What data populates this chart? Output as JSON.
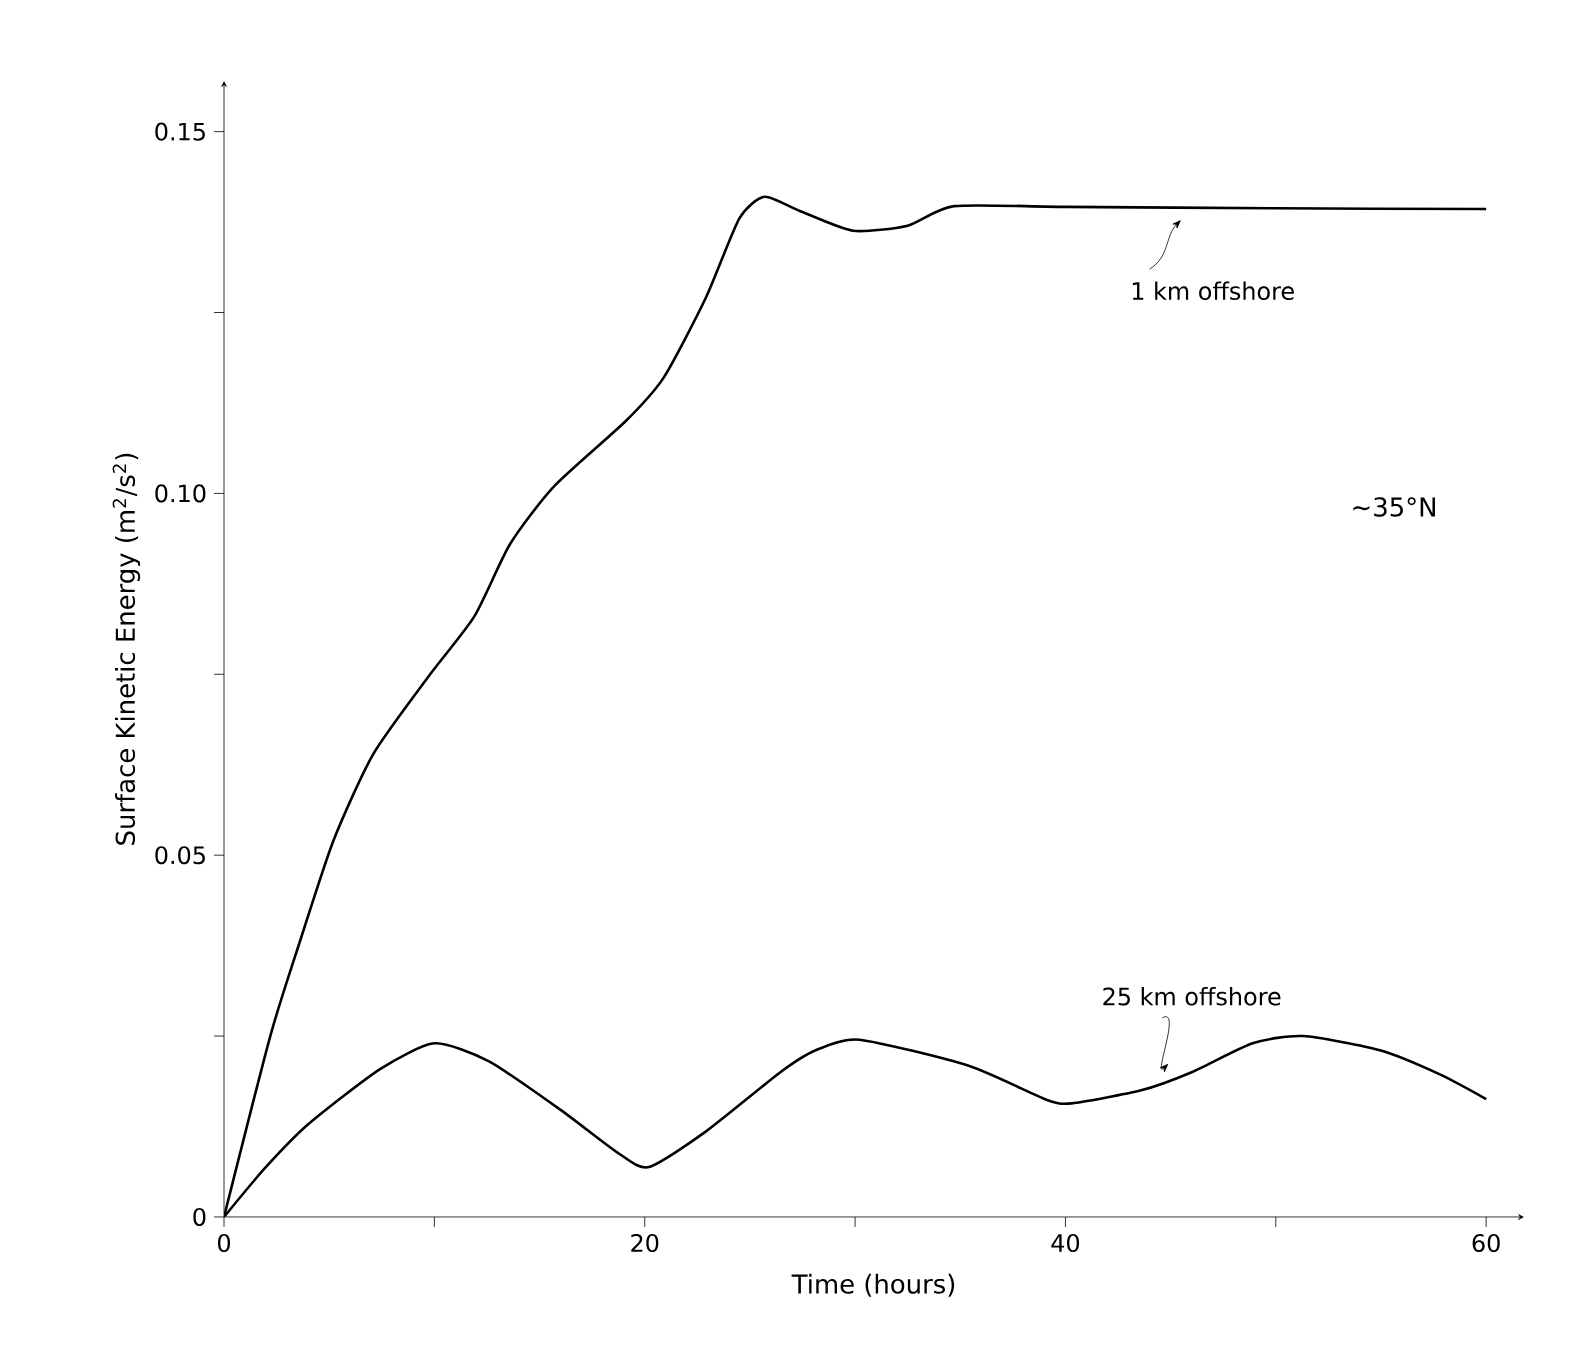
{
  "chart_data": {
    "type": "line",
    "xlabel": "Time (hours)",
    "ylabel": "Surface Kinetic Energy (m$^{2}$/s$^{2}$)",
    "annotations": [
      "~35°N"
    ],
    "xlim": [
      0,
      61.8
    ],
    "ylim": [
      0,
      0.157
    ],
    "xticks": [
      0,
      {
        "value": 10,
        "label": null
      },
      20,
      {
        "value": 30,
        "label": null
      },
      40,
      {
        "value": 50,
        "label": null
      },
      60
    ],
    "yticks": [
      0,
      {
        "value": 0.025,
        "label": null
      },
      0.05,
      {
        "value": 0.075,
        "label": null
      },
      {
        "value": 0.1,
        "label": "0.10"
      },
      {
        "value": 0.125,
        "label": null
      },
      0.15
    ],
    "grid": false,
    "marker": "none",
    "line_style": "solid",
    "series": [
      {
        "name": "1 km offshore",
        "color": "#000000",
        "x": [
          0,
          2.2,
          3.6,
          5.2,
          7.1,
          9.8,
          11.9,
          13.6,
          15.7,
          19.1,
          20.9,
          22.9,
          24.5,
          25.7,
          27.4,
          29.9,
          32.5,
          34.7,
          40,
          50,
          60
        ],
        "values": [
          0,
          0.025,
          0.038,
          0.052,
          0.064,
          0.075,
          0.083,
          0.093,
          0.101,
          0.11,
          0.116,
          0.127,
          0.138,
          0.141,
          0.139,
          0.1363,
          0.137,
          0.1397,
          0.1396,
          0.1394,
          0.1393
        ]
      },
      {
        "name": "25 km offshore",
        "color": "#000000",
        "x": [
          0,
          1.9,
          4.0,
          7.4,
          10.0,
          12.6,
          16.0,
          18.8,
          20.2,
          22.9,
          26.4,
          28.1,
          30.2,
          35.4,
          39.1,
          40.3,
          43.6,
          46.0,
          48.9,
          51.3,
          55.0,
          57.8,
          60.0
        ],
        "values": [
          0,
          0.0066,
          0.0128,
          0.0204,
          0.024,
          0.0215,
          0.0148,
          0.0087,
          0.0069,
          0.0118,
          0.0199,
          0.023,
          0.0245,
          0.0209,
          0.0162,
          0.0157,
          0.0175,
          0.02,
          0.024,
          0.025,
          0.023,
          0.0197,
          0.0163
        ]
      }
    ]
  }
}
